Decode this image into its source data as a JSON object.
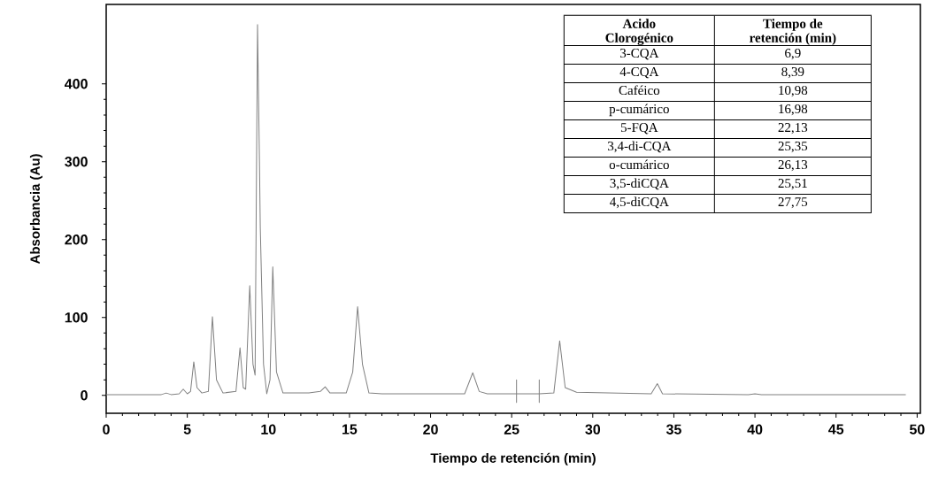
{
  "chart_data": {
    "type": "line",
    "xlabel": "Tiempo de retención (min)",
    "ylabel": "Absorbancia (Au)",
    "xlim": [
      0,
      50.2
    ],
    "ylim": [
      -23,
      502
    ],
    "xticks": [
      0,
      5,
      10,
      15,
      20,
      25,
      30,
      35,
      40,
      45,
      50
    ],
    "yticks": [
      0,
      100,
      200,
      300,
      400
    ],
    "series": [
      {
        "color": "#808080",
        "x": [
          0,
          3.4,
          3.7,
          4.0,
          4.5,
          4.75,
          5.0,
          5.2,
          5.4,
          5.6,
          5.9,
          6.3,
          6.55,
          6.8,
          7.2,
          8.0,
          8.25,
          8.45,
          8.6,
          8.85,
          9.05,
          9.18,
          9.33,
          9.45,
          9.5,
          9.7,
          9.9,
          10.1,
          10.27,
          10.5,
          10.9,
          12.5,
          13.2,
          13.5,
          13.8,
          14.8,
          15.2,
          15.5,
          15.8,
          16.2,
          17,
          22.1,
          22.6,
          23.0,
          23.5,
          25.3,
          25.3,
          25.3,
          25.3,
          26.7,
          26.7,
          26.7,
          26.7,
          27.6,
          27.96,
          28.3,
          29,
          33.6,
          33.98,
          34.3,
          39.6,
          40,
          40.4,
          49.3
        ],
        "values": [
          1,
          1,
          3,
          1,
          2,
          8,
          2,
          5,
          43,
          10,
          3,
          5,
          101,
          20,
          3,
          5,
          61,
          10,
          8,
          141,
          40,
          26,
          476,
          300,
          216,
          40,
          2,
          20,
          165,
          30,
          3,
          3,
          5,
          11,
          3,
          3,
          30,
          114,
          40,
          3,
          2,
          2,
          29,
          5,
          2,
          2,
          20,
          -9,
          2,
          2,
          20,
          -9,
          2,
          3,
          70,
          10,
          4,
          2,
          15,
          2,
          1,
          2,
          1,
          1
        ]
      }
    ],
    "annotations": [
      "Acido Clorogénico",
      "Tiempo de retención (min)",
      "3-CQA",
      "6,9",
      "4-CQA",
      "8,39",
      "Caféico",
      "10,98",
      "p-cumárico",
      "16,98",
      "5-FQA",
      "22,13",
      "3,4-di-CQA",
      "25,35",
      "o-cumárico",
      "26,13",
      "3,5-diCQA",
      "25,51",
      "4,5-diCQA",
      "27,75"
    ]
  }
}
